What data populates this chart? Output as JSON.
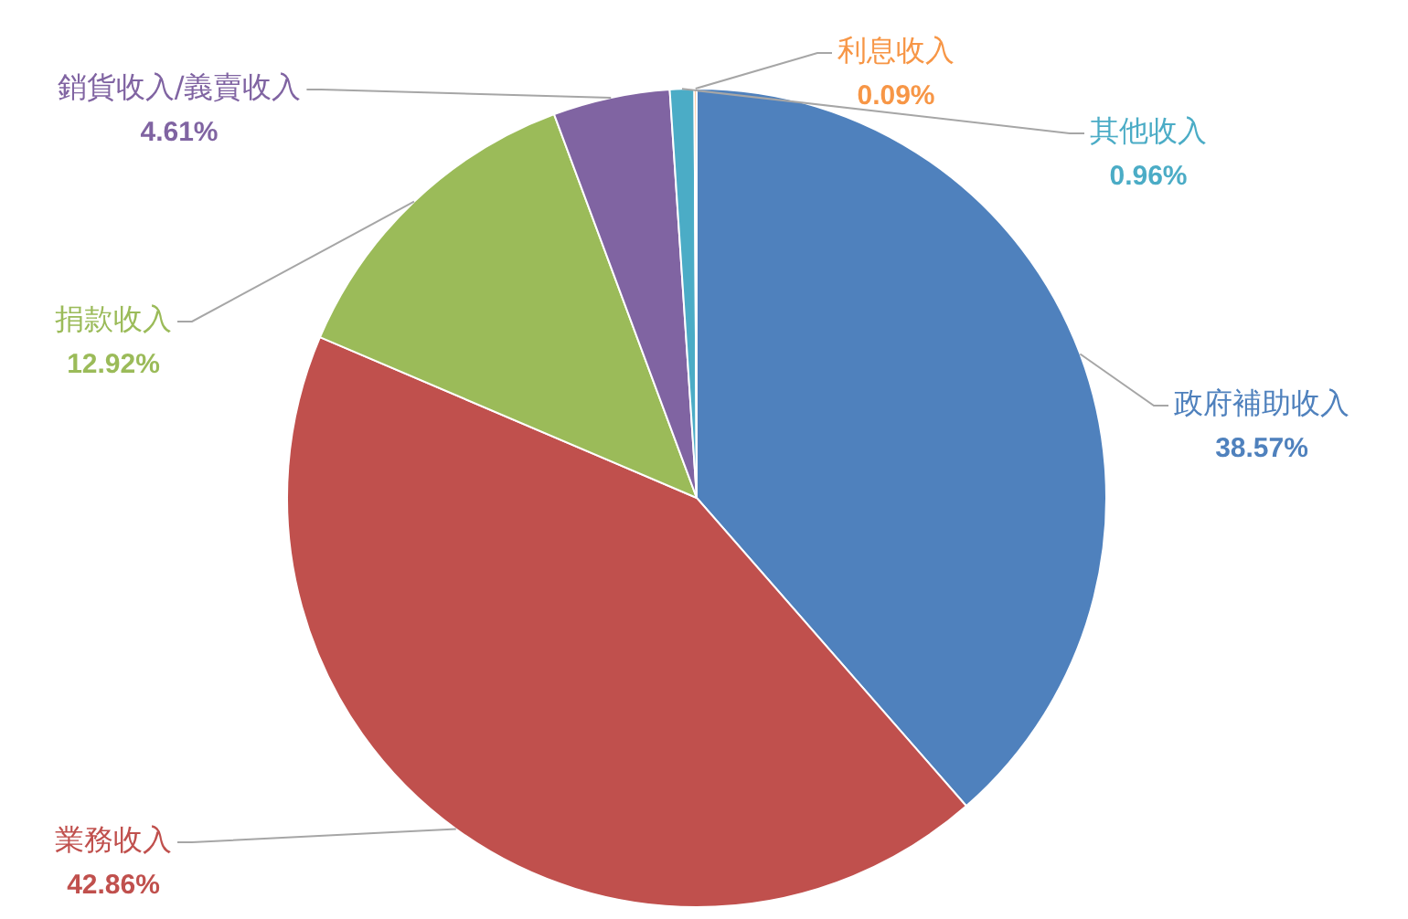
{
  "chart_data": {
    "type": "pie",
    "categories": [
      "政府補助收入",
      "業務收入",
      "捐款收入",
      "銷貨收入/義賣收入",
      "其他收入",
      "利息收入"
    ],
    "values": [
      38.57,
      42.86,
      12.92,
      4.61,
      0.96,
      0.09
    ],
    "colors": [
      "#4f81bd",
      "#c0504d",
      "#9bbb59",
      "#8064a2",
      "#4bacc6",
      "#f79646"
    ],
    "value_labels": [
      "38.57%",
      "42.86%",
      "12.92%",
      "4.61%",
      "0.96%",
      "0.09%"
    ],
    "legend": false
  }
}
